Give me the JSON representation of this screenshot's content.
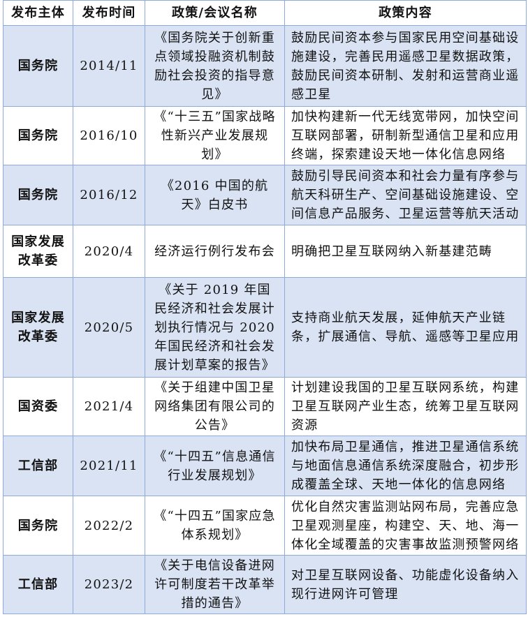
{
  "headers": [
    "发布主体",
    "发布时间",
    "政策/会议名称",
    "政策内容"
  ],
  "shade_color": "#dae3f3",
  "border_color": "#8eaadb",
  "rows": [
    {
      "org": "国务院",
      "date": "2014/11",
      "name": "《国务院关于创新重点领域投融资机制鼓励社会投资的指导意见》",
      "content": "鼓励民间资本参与国家民用空间基础设施建设，完善民用遥感卫星数据政策，鼓励民间资本研制、发射和运营商业遥感卫星",
      "shaded": true
    },
    {
      "org": "国务院",
      "date": "2016/10",
      "name": "《“十三五”国家战略性新兴产业发展规划》",
      "content": "加快构建新一代无线宽带网，加快空间互联网部署，研制新型通信卫星和应用终端，探索建设天地一体化信息网络",
      "shaded": false
    },
    {
      "org": "国务院",
      "date": "2016/12",
      "name": "《2016 中国的航天》白皮书",
      "content": "鼓励引导民间资本和社会力量有序参与航天科研生产、空间基础设施建设、空间信息产品服务、卫星运营等航天活动",
      "shaded": true
    },
    {
      "org": "国家发展改革委",
      "date": "2020/4",
      "name": "经济运行例行发布会",
      "content": "明确把卫星互联网纳入新基建范畴",
      "shaded": false
    },
    {
      "org": "国家发展改革委",
      "date": "2020/5",
      "name": "《关于 2019 年国民经济和社会发展计划执行情况与 2020 年国民经济和社会发展计划草案的报告》",
      "content": "支持商业航天发展，延伸航天产业链条，扩展通信、导航、遥感等卫星应用",
      "shaded": true
    },
    {
      "org": "国资委",
      "date": "2021/4",
      "name": "《关于组建中国卫星网络集团有限公司的公告》",
      "content": "计划建设我国的卫星互联网系统，构建卫星互联网产业生态，统筹卫星互联网资源",
      "shaded": false
    },
    {
      "org": "工信部",
      "date": "2021/11",
      "name": "《“十四五”信息通信行业发展规划》",
      "content": "加快布局卫星通信，推进卫星通信系统与地面信息通信系统深度融合，初步形成覆盖全球、天地一体化的信息网络",
      "shaded": true
    },
    {
      "org": "国务院",
      "date": "2022/2",
      "name": "《“十四五”国家应急体系规划》",
      "content": "优化自然灾害监测站网布局，完善应急卫星观测星座，构建空、天、地、海一体化全域覆盖的灾害事故监测预警网络",
      "shaded": false
    },
    {
      "org": "工信部",
      "date": "2023/2",
      "name": "《关于电信设备进网许可制度若干改革举措的通告》",
      "content": "对卫星互联网设备、功能虚化设备纳入现行进网许可管理",
      "shaded": true
    }
  ]
}
